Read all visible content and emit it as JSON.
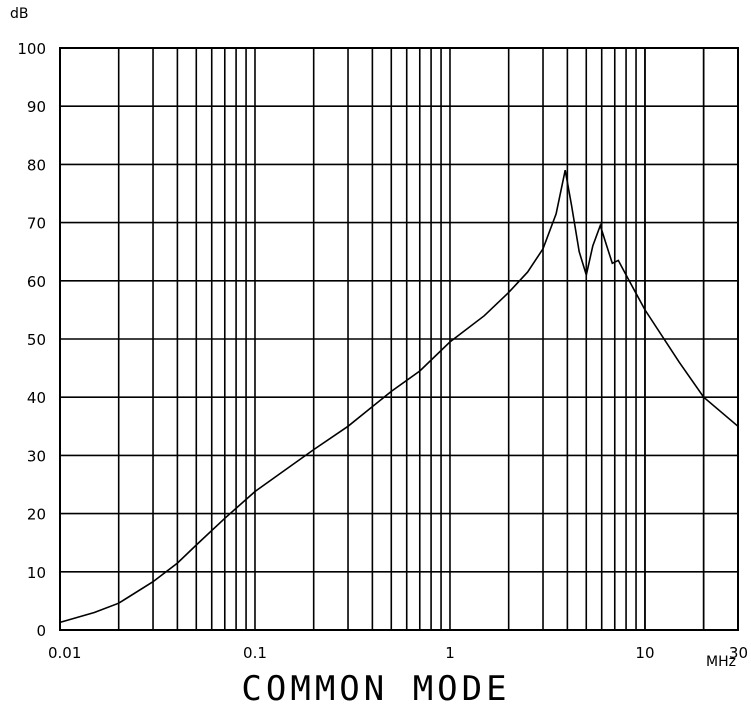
{
  "chart_data": {
    "type": "line",
    "title": "COMMON MODE",
    "xlabel": "MHz",
    "ylabel": "dB",
    "x_scale": "log",
    "xlim": [
      0.01,
      30
    ],
    "ylim": [
      0,
      100
    ],
    "grid": true,
    "x_ticks": [
      "0.01",
      "0.1",
      "1",
      "10",
      "30"
    ],
    "x_tick_values": [
      0.01,
      0.1,
      1,
      10,
      30
    ],
    "y_ticks": [
      "0",
      "10",
      "20",
      "30",
      "40",
      "50",
      "60",
      "70",
      "80",
      "90",
      "100"
    ],
    "y_tick_values": [
      0,
      10,
      20,
      30,
      40,
      50,
      60,
      70,
      80,
      90,
      100
    ],
    "series": [
      {
        "x": [
          0.01,
          0.015,
          0.02,
          0.03,
          0.04,
          0.05,
          0.07,
          0.1,
          0.15,
          0.2,
          0.3,
          0.5,
          0.7,
          1,
          1.5,
          2,
          2.5,
          3,
          3.5,
          3.9,
          4.2,
          4.6,
          5.0,
          5.4,
          5.9,
          6.3,
          6.8,
          7.3,
          8,
          10,
          15,
          20,
          30
        ],
        "y": [
          1.3,
          3.0,
          4.6,
          8.3,
          11.5,
          14.6,
          19.2,
          23.8,
          28.0,
          31.0,
          35.0,
          41.0,
          44.5,
          49.5,
          54.0,
          58.0,
          61.5,
          65.5,
          71.5,
          79.0,
          73.0,
          65.0,
          61.0,
          66.0,
          69.5,
          66.5,
          63.0,
          63.5,
          61.0,
          55.0,
          46.0,
          40.0,
          35.0
        ]
      }
    ]
  }
}
